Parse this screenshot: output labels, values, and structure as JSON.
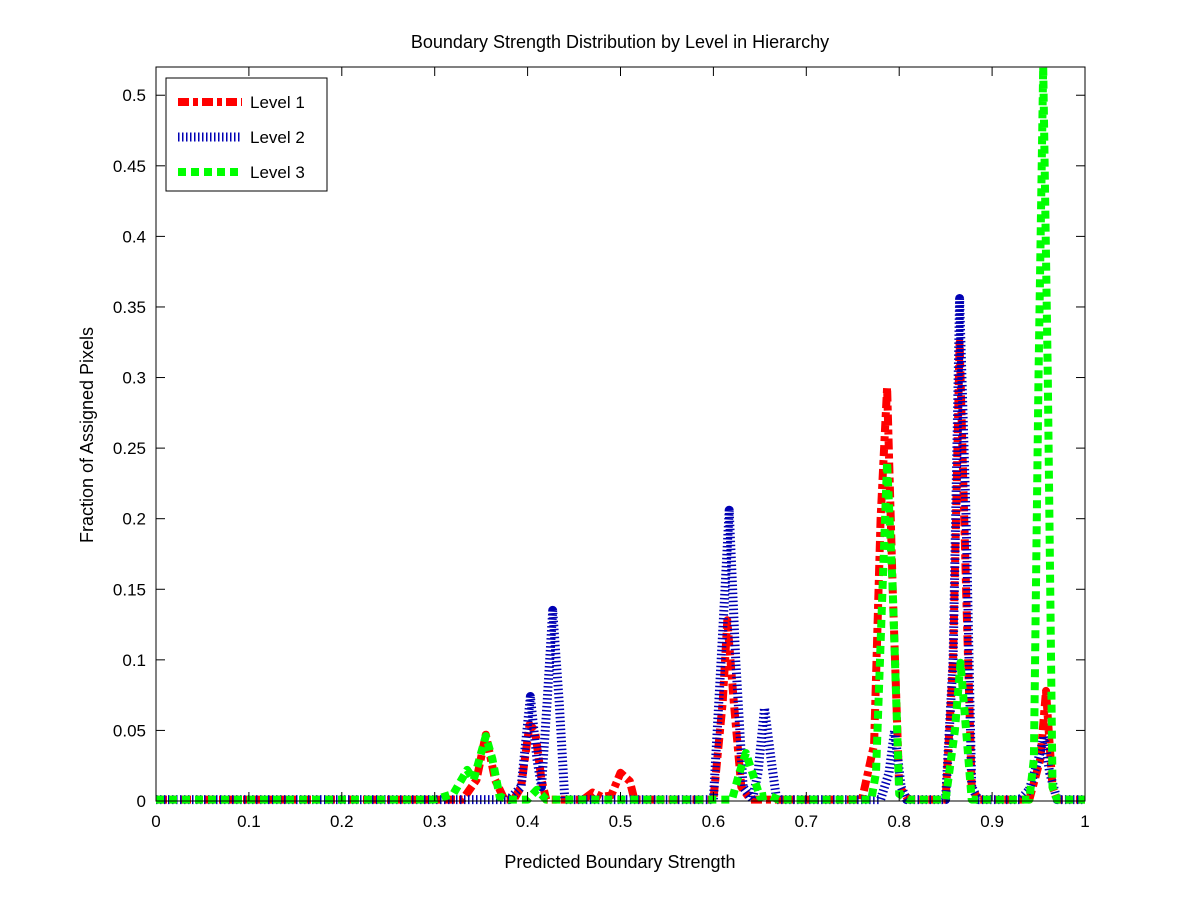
{
  "chart_data": {
    "type": "line",
    "title": "Boundary Strength Distribution by Level in Hierarchy",
    "xlabel": "Predicted Boundary Strength",
    "ylabel": "Fraction of Assigned Pixels",
    "xlim": [
      0,
      1
    ],
    "ylim": [
      0,
      0.52
    ],
    "xticks": [
      "0",
      "0.1",
      "0.2",
      "0.3",
      "0.4",
      "0.5",
      "0.6",
      "0.7",
      "0.8",
      "0.9",
      "1"
    ],
    "yticks": [
      "0",
      "0.05",
      "0.1",
      "0.15",
      "0.2",
      "0.25",
      "0.3",
      "0.35",
      "0.4",
      "0.45",
      "0.5"
    ],
    "grid": false,
    "legend_position": "top-left",
    "series": [
      {
        "name": "Level 1",
        "color": "#ff0000",
        "style": "dash-dot",
        "points": [
          [
            0,
            0.001
          ],
          [
            0.3,
            0.001
          ],
          [
            0.33,
            0.001
          ],
          [
            0.345,
            0.015
          ],
          [
            0.355,
            0.047
          ],
          [
            0.365,
            0.015
          ],
          [
            0.375,
            0.001
          ],
          [
            0.385,
            0.001
          ],
          [
            0.393,
            0.01
          ],
          [
            0.402,
            0.054
          ],
          [
            0.408,
            0.05
          ],
          [
            0.415,
            0.015
          ],
          [
            0.42,
            0.001
          ],
          [
            0.46,
            0.001
          ],
          [
            0.47,
            0.006
          ],
          [
            0.48,
            0.003
          ],
          [
            0.49,
            0.004
          ],
          [
            0.5,
            0.02
          ],
          [
            0.51,
            0.014
          ],
          [
            0.515,
            0.001
          ],
          [
            0.6,
            0.001
          ],
          [
            0.61,
            0.07
          ],
          [
            0.615,
            0.128
          ],
          [
            0.622,
            0.07
          ],
          [
            0.63,
            0.01
          ],
          [
            0.64,
            0.001
          ],
          [
            0.76,
            0.001
          ],
          [
            0.773,
            0.04
          ],
          [
            0.78,
            0.2
          ],
          [
            0.787,
            0.293
          ],
          [
            0.793,
            0.15
          ],
          [
            0.8,
            0.01
          ],
          [
            0.81,
            0.001
          ],
          [
            0.85,
            0.001
          ],
          [
            0.858,
            0.1
          ],
          [
            0.865,
            0.325
          ],
          [
            0.872,
            0.15
          ],
          [
            0.878,
            0.01
          ],
          [
            0.885,
            0.001
          ],
          [
            0.94,
            0.001
          ],
          [
            0.952,
            0.03
          ],
          [
            0.958,
            0.078
          ],
          [
            0.965,
            0.01
          ],
          [
            0.97,
            0.001
          ],
          [
            1,
            0.001
          ]
        ]
      },
      {
        "name": "Level 2",
        "color": "#0000b4",
        "style": "dotted",
        "points": [
          [
            0,
            0.001
          ],
          [
            0.38,
            0.001
          ],
          [
            0.393,
            0.01
          ],
          [
            0.403,
            0.074
          ],
          [
            0.41,
            0.03
          ],
          [
            0.415,
            0.01
          ],
          [
            0.421,
            0.07
          ],
          [
            0.427,
            0.135
          ],
          [
            0.434,
            0.07
          ],
          [
            0.44,
            0.001
          ],
          [
            0.6,
            0.001
          ],
          [
            0.61,
            0.12
          ],
          [
            0.617,
            0.206
          ],
          [
            0.624,
            0.1
          ],
          [
            0.632,
            0.01
          ],
          [
            0.642,
            0.001
          ],
          [
            0.648,
            0.02
          ],
          [
            0.655,
            0.066
          ],
          [
            0.662,
            0.03
          ],
          [
            0.668,
            0.001
          ],
          [
            0.78,
            0.001
          ],
          [
            0.789,
            0.02
          ],
          [
            0.795,
            0.05
          ],
          [
            0.802,
            0.01
          ],
          [
            0.808,
            0.001
          ],
          [
            0.85,
            0.001
          ],
          [
            0.858,
            0.1
          ],
          [
            0.865,
            0.356
          ],
          [
            0.872,
            0.2
          ],
          [
            0.878,
            0.01
          ],
          [
            0.885,
            0.001
          ],
          [
            0.93,
            0.001
          ],
          [
            0.94,
            0.008
          ],
          [
            0.95,
            0.03
          ],
          [
            0.956,
            0.046
          ],
          [
            0.962,
            0.02
          ],
          [
            0.97,
            0.001
          ],
          [
            1,
            0.001
          ]
        ]
      },
      {
        "name": "Level 3",
        "color": "#00ff00",
        "style": "dashed",
        "points": [
          [
            0,
            0.001
          ],
          [
            0.3,
            0.001
          ],
          [
            0.32,
            0.005
          ],
          [
            0.335,
            0.022
          ],
          [
            0.342,
            0.015
          ],
          [
            0.355,
            0.046
          ],
          [
            0.362,
            0.03
          ],
          [
            0.37,
            0.003
          ],
          [
            0.38,
            0.001
          ],
          [
            0.4,
            0.001
          ],
          [
            0.41,
            0.008
          ],
          [
            0.42,
            0.001
          ],
          [
            0.6,
            0.001
          ],
          [
            0.62,
            0.001
          ],
          [
            0.628,
            0.02
          ],
          [
            0.635,
            0.034
          ],
          [
            0.642,
            0.02
          ],
          [
            0.65,
            0.003
          ],
          [
            0.66,
            0.004
          ],
          [
            0.67,
            0.001
          ],
          [
            0.77,
            0.001
          ],
          [
            0.775,
            0.02
          ],
          [
            0.782,
            0.15
          ],
          [
            0.787,
            0.24
          ],
          [
            0.793,
            0.15
          ],
          [
            0.8,
            0.005
          ],
          [
            0.81,
            0.001
          ],
          [
            0.85,
            0.001
          ],
          [
            0.86,
            0.05
          ],
          [
            0.866,
            0.098
          ],
          [
            0.872,
            0.05
          ],
          [
            0.878,
            0.001
          ],
          [
            0.94,
            0.001
          ],
          [
            0.945,
            0.03
          ],
          [
            0.95,
            0.3
          ],
          [
            0.955,
            0.52
          ],
          [
            0.96,
            0.3
          ],
          [
            0.965,
            0.01
          ],
          [
            0.97,
            0.001
          ],
          [
            1,
            0.001
          ]
        ]
      }
    ]
  }
}
